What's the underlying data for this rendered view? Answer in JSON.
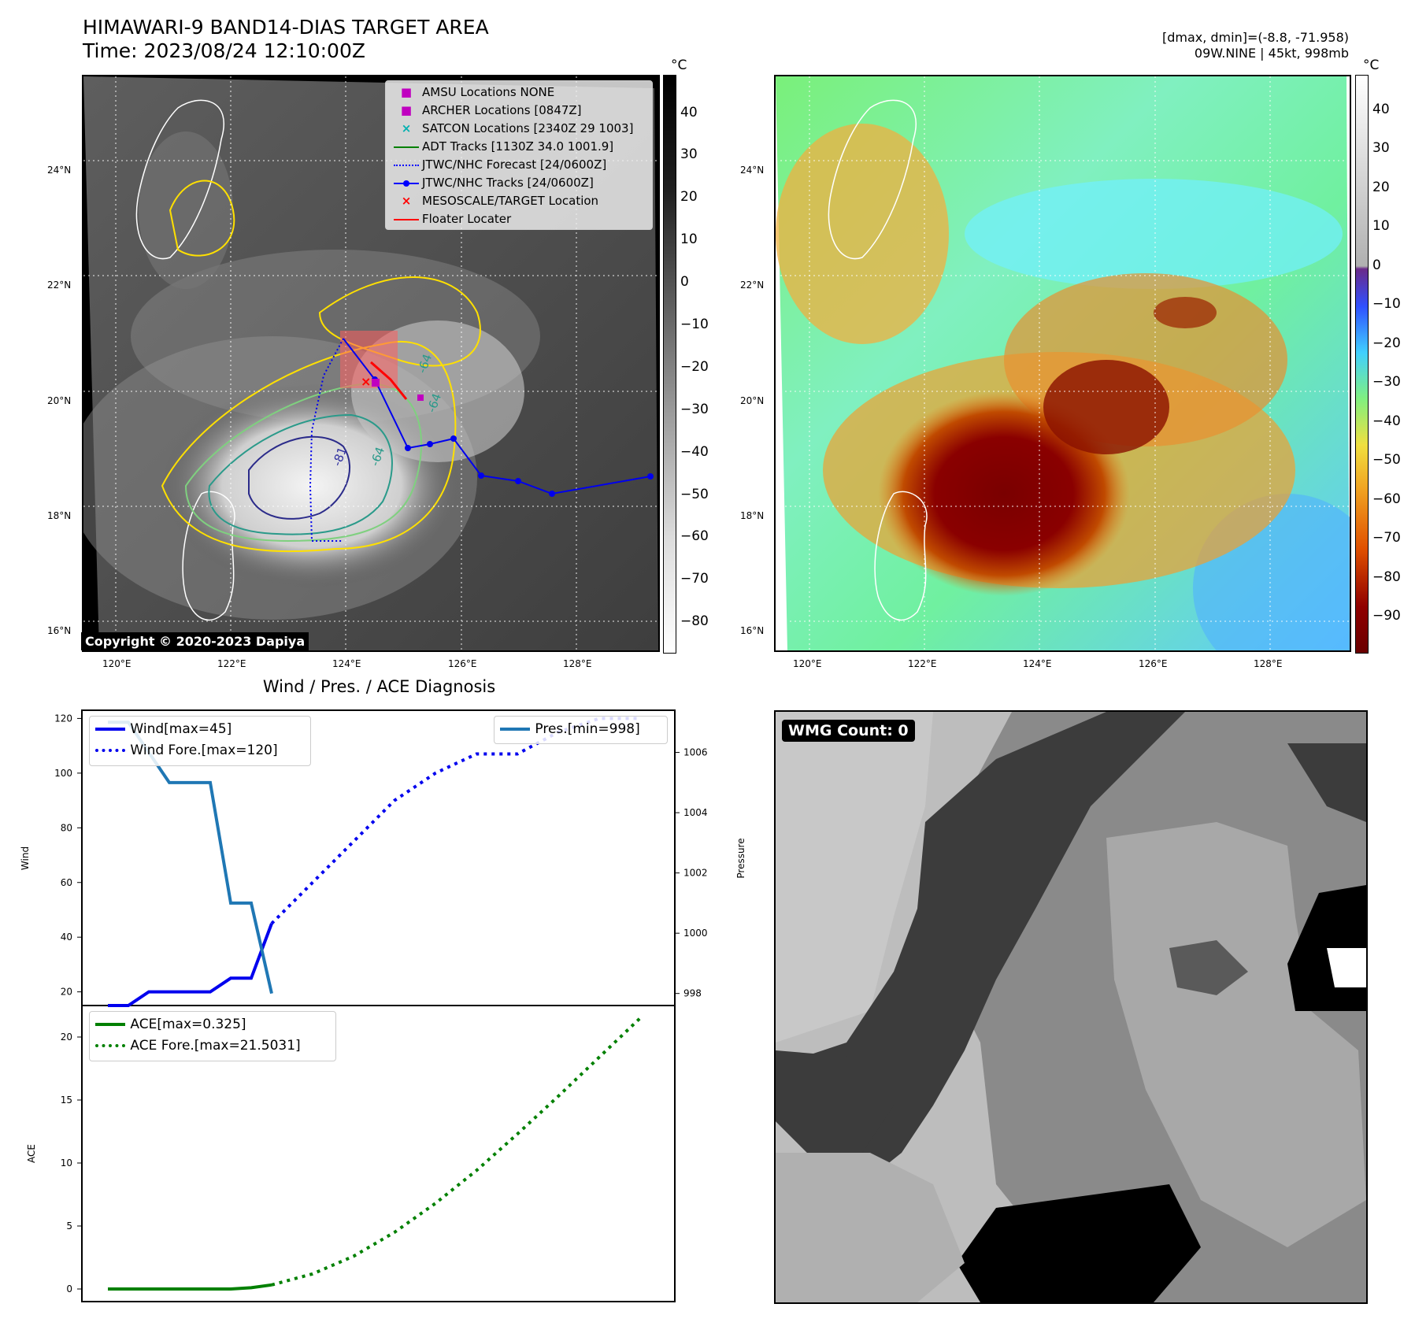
{
  "header": {
    "title": "HIMAWARI-9 BAND14-DIAS TARGET AREA",
    "time": "Time: 2023/08/24 12:10:00Z",
    "dminmax": "[dmax, dmin]=(-8.8, -71.958)",
    "storm": "09W.NINE | 45kt, 998mb"
  },
  "map": {
    "lat_labels": [
      "24°N",
      "22°N",
      "20°N",
      "18°N",
      "16°N"
    ],
    "lon_labels": [
      "120°E",
      "122°E",
      "124°E",
      "126°E",
      "128°E"
    ],
    "contour_labels": [
      "-81",
      "-64",
      "-64",
      "-64"
    ],
    "copyright": "Copyright © 2020-2023 Dapiya"
  },
  "colorbar_gray": {
    "unit": "°C",
    "ticks": [
      "40",
      "30",
      "20",
      "10",
      "0",
      "−10",
      "−20",
      "−30",
      "−40",
      "−50",
      "−60",
      "−70",
      "−80"
    ]
  },
  "colorbar_color": {
    "unit": "°C",
    "ticks": [
      "40",
      "30",
      "20",
      "10",
      "0",
      "−10",
      "−20",
      "−30",
      "−40",
      "−50",
      "−60",
      "−70",
      "−80",
      "−90"
    ]
  },
  "legend_map": {
    "items": [
      {
        "label": "AMSU Locations NONE",
        "symbol": "■",
        "color": "#c000c0"
      },
      {
        "label": "ARCHER Locations [0847Z]",
        "symbol": "■",
        "color": "#c000c0"
      },
      {
        "label": "SATCON Locations [2340Z 29 1003]",
        "symbol": "×",
        "color": "#00b0b0"
      },
      {
        "label": "ADT Tracks [1130Z 34.0 1001.9]",
        "symbol": "line",
        "color": "#008000"
      },
      {
        "label": "JTWC/NHC Forecast [24/0600Z]",
        "symbol": "dotted",
        "color": "#0000ff"
      },
      {
        "label": "JTWC/NHC Tracks [24/0600Z]",
        "symbol": "dotline",
        "color": "#0000ff"
      },
      {
        "label": "MESOSCALE/TARGET Location",
        "symbol": "×",
        "color": "#ff0000"
      },
      {
        "label": "Floater Locater",
        "symbol": "line",
        "color": "#ff0000"
      }
    ]
  },
  "wmg": {
    "label": "WMG Count: 0"
  },
  "chart_data": [
    {
      "type": "line",
      "title": "Wind / Pres. / ACE Diagnosis",
      "ylabel": "Wind",
      "y2label": "Pressure",
      "ylim": [
        15,
        123
      ],
      "y2lim": [
        997.6,
        1007.4
      ],
      "yticks": [
        20,
        40,
        60,
        80,
        100,
        120
      ],
      "y2ticks": [
        998,
        1000,
        1002,
        1004,
        1006
      ],
      "series": [
        {
          "name": "Wind[max=45]",
          "axis": "left",
          "style": "solid",
          "color": "#0000ee",
          "x": [
            0,
            1,
            2,
            3,
            4,
            5,
            6,
            7,
            8
          ],
          "values": [
            15,
            15,
            20,
            20,
            20,
            20,
            25,
            25,
            45
          ]
        },
        {
          "name": "Wind Fore.[max=120]",
          "axis": "left",
          "style": "dotted",
          "color": "#0000ee",
          "x": [
            8,
            10,
            12,
            14,
            16,
            18,
            20,
            22,
            24,
            26
          ],
          "values": [
            45,
            60,
            75,
            90,
            100,
            107,
            107,
            115,
            120,
            120
          ]
        },
        {
          "name": "Pres.[min=998]",
          "axis": "right",
          "style": "solid",
          "color": "#1f77b4",
          "x": [
            0,
            1,
            2,
            3,
            4,
            5,
            6,
            7,
            8
          ],
          "values": [
            1007,
            1007,
            1006,
            1005,
            1005,
            1005,
            1001,
            1001,
            998
          ]
        }
      ]
    },
    {
      "type": "line",
      "ylabel": "ACE",
      "ylim": [
        -1,
        22.5
      ],
      "yticks": [
        0,
        5,
        10,
        15,
        20
      ],
      "series": [
        {
          "name": "ACE[max=0.325]",
          "style": "solid",
          "color": "#008000",
          "x": [
            0,
            2,
            4,
            6,
            7,
            8
          ],
          "values": [
            0,
            0,
            0,
            0,
            0.1,
            0.325
          ]
        },
        {
          "name": "ACE Fore.[max=21.5031]",
          "style": "dotted",
          "color": "#008000",
          "x": [
            8,
            10,
            12,
            14,
            16,
            18,
            20,
            22,
            24,
            26
          ],
          "values": [
            0.325,
            1.2,
            2.6,
            4.5,
            6.8,
            9.4,
            12.3,
            15.3,
            18.4,
            21.5
          ]
        }
      ]
    }
  ]
}
